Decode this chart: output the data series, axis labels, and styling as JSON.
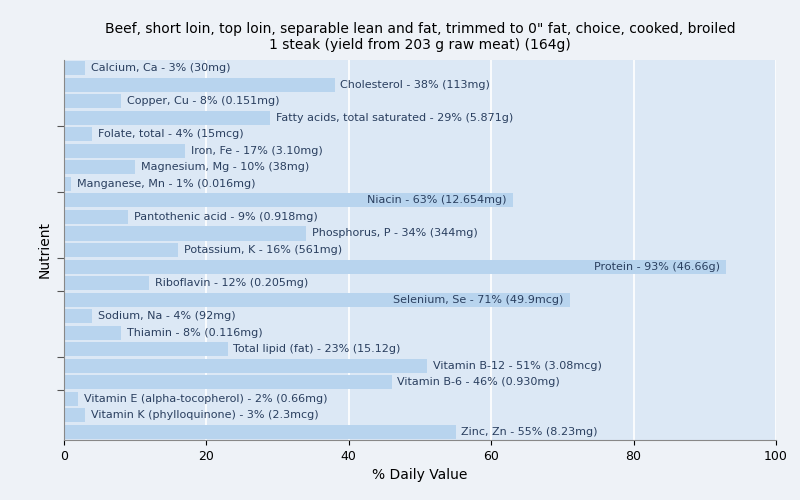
{
  "title": "Beef, short loin, top loin, separable lean and fat, trimmed to 0\" fat, choice, cooked, broiled\n1 steak (yield from 203 g raw meat) (164g)",
  "xlabel": "% Daily Value",
  "ylabel": "Nutrient",
  "xlim": [
    0,
    100
  ],
  "xticks": [
    0,
    20,
    40,
    60,
    80,
    100
  ],
  "background_color": "#eef2f7",
  "plot_bg_color": "#dce8f5",
  "bar_color": "#b8d4ee",
  "bar_edge_color": "#b8d4ee",
  "nutrients": [
    {
      "label": "Calcium, Ca - 3% (30mg)",
      "value": 3
    },
    {
      "label": "Cholesterol - 38% (113mg)",
      "value": 38
    },
    {
      "label": "Copper, Cu - 8% (0.151mg)",
      "value": 8
    },
    {
      "label": "Fatty acids, total saturated - 29% (5.871g)",
      "value": 29
    },
    {
      "label": "Folate, total - 4% (15mcg)",
      "value": 4
    },
    {
      "label": "Iron, Fe - 17% (3.10mg)",
      "value": 17
    },
    {
      "label": "Magnesium, Mg - 10% (38mg)",
      "value": 10
    },
    {
      "label": "Manganese, Mn - 1% (0.016mg)",
      "value": 1
    },
    {
      "label": "Niacin - 63% (12.654mg)",
      "value": 63
    },
    {
      "label": "Pantothenic acid - 9% (0.918mg)",
      "value": 9
    },
    {
      "label": "Phosphorus, P - 34% (344mg)",
      "value": 34
    },
    {
      "label": "Potassium, K - 16% (561mg)",
      "value": 16
    },
    {
      "label": "Protein - 93% (46.66g)",
      "value": 93
    },
    {
      "label": "Riboflavin - 12% (0.205mg)",
      "value": 12
    },
    {
      "label": "Selenium, Se - 71% (49.9mcg)",
      "value": 71
    },
    {
      "label": "Sodium, Na - 4% (92mg)",
      "value": 4
    },
    {
      "label": "Thiamin - 8% (0.116mg)",
      "value": 8
    },
    {
      "label": "Total lipid (fat) - 23% (15.12g)",
      "value": 23
    },
    {
      "label": "Vitamin B-12 - 51% (3.08mcg)",
      "value": 51
    },
    {
      "label": "Vitamin B-6 - 46% (0.930mg)",
      "value": 46
    },
    {
      "label": "Vitamin E (alpha-tocopherol) - 2% (0.66mg)",
      "value": 2
    },
    {
      "label": "Vitamin K (phylloquinone) - 3% (2.3mcg)",
      "value": 3
    },
    {
      "label": "Zinc, Zn - 55% (8.23mg)",
      "value": 55
    }
  ],
  "title_fontsize": 10,
  "label_fontsize": 8,
  "tick_fontsize": 9,
  "axis_label_fontsize": 10,
  "grid_color": "#ffffff",
  "text_color": "#2a3f5f",
  "group_separators": [
    3.5,
    7.5,
    11.5,
    13.5,
    17.5,
    19.5
  ]
}
